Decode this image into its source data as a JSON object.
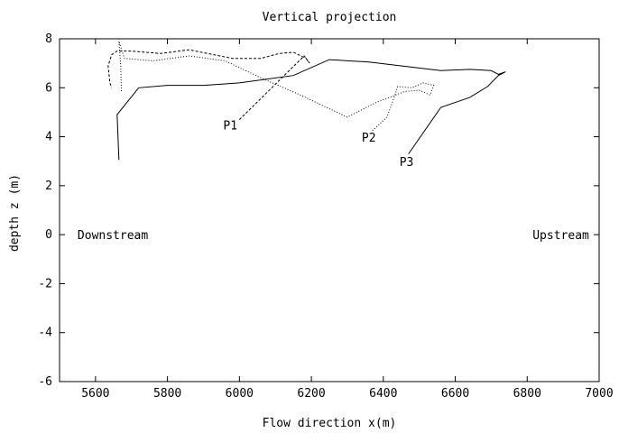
{
  "chart_data": {
    "type": "line",
    "title": "Vertical projection",
    "xlabel": "Flow direction x(m)",
    "ylabel": "depth z (m)",
    "xlim": [
      5500,
      7000
    ],
    "ylim": [
      -6,
      8
    ],
    "x_ticks": [
      5600,
      5800,
      6000,
      6200,
      6400,
      6600,
      6800,
      7000
    ],
    "y_ticks": [
      -6,
      -4,
      -2,
      0,
      2,
      4,
      6,
      8
    ],
    "grid": false,
    "legend": "none",
    "annotations": [
      {
        "text": "Downstream",
        "x": 5550,
        "y": 0
      },
      {
        "text": "Upstream",
        "x": 6815,
        "y": 0
      }
    ],
    "series": [
      {
        "label": "P1",
        "label_x": 5955,
        "label_y": 4.3,
        "leader_to": [
          6000,
          4.7
        ],
        "dash": "3,2",
        "points": [
          [
            6000,
            4.7
          ],
          [
            6180,
            7.3
          ],
          [
            6195,
            7.0
          ],
          [
            6185,
            7.2
          ],
          [
            6150,
            7.45
          ],
          [
            6110,
            7.4
          ],
          [
            6060,
            7.2
          ],
          [
            5980,
            7.2
          ],
          [
            5860,
            7.55
          ],
          [
            5780,
            7.4
          ],
          [
            5700,
            7.5
          ],
          [
            5660,
            7.5
          ],
          [
            5645,
            7.35
          ],
          [
            5635,
            6.9
          ],
          [
            5640,
            6.2
          ],
          [
            5645,
            6.0
          ]
        ]
      },
      {
        "label": "P2",
        "label_x": 6340,
        "label_y": 3.8,
        "leader_to": [
          6370,
          4.25
        ],
        "dash": "1,2",
        "points": [
          [
            6370,
            4.25
          ],
          [
            6410,
            4.8
          ],
          [
            6430,
            5.6
          ],
          [
            6440,
            6.05
          ],
          [
            6480,
            6.0
          ],
          [
            6510,
            6.2
          ],
          [
            6540,
            6.1
          ],
          [
            6530,
            5.7
          ],
          [
            6500,
            5.9
          ],
          [
            6460,
            5.85
          ],
          [
            6380,
            5.4
          ],
          [
            6300,
            4.8
          ],
          [
            6170,
            5.7
          ],
          [
            6060,
            6.4
          ],
          [
            5960,
            7.1
          ],
          [
            5860,
            7.3
          ],
          [
            5760,
            7.1
          ],
          [
            5680,
            7.2
          ],
          [
            5665,
            7.9
          ],
          [
            5670,
            6.9
          ],
          [
            5672,
            5.8
          ]
        ]
      },
      {
        "label": "P3",
        "label_x": 6445,
        "label_y": 2.8,
        "leader_to": [
          6470,
          3.3
        ],
        "dash": "",
        "points": [
          [
            6470,
            3.3
          ],
          [
            6560,
            5.2
          ],
          [
            6640,
            5.6
          ],
          [
            6690,
            6.05
          ],
          [
            6720,
            6.5
          ],
          [
            6740,
            6.65
          ],
          [
            6720,
            6.55
          ],
          [
            6700,
            6.7
          ],
          [
            6640,
            6.75
          ],
          [
            6560,
            6.7
          ],
          [
            6360,
            7.05
          ],
          [
            6250,
            7.15
          ],
          [
            6150,
            6.5
          ],
          [
            6000,
            6.2
          ],
          [
            5900,
            6.1
          ],
          [
            5800,
            6.1
          ],
          [
            5720,
            6.0
          ],
          [
            5660,
            4.9
          ],
          [
            5665,
            3.05
          ]
        ]
      }
    ]
  }
}
